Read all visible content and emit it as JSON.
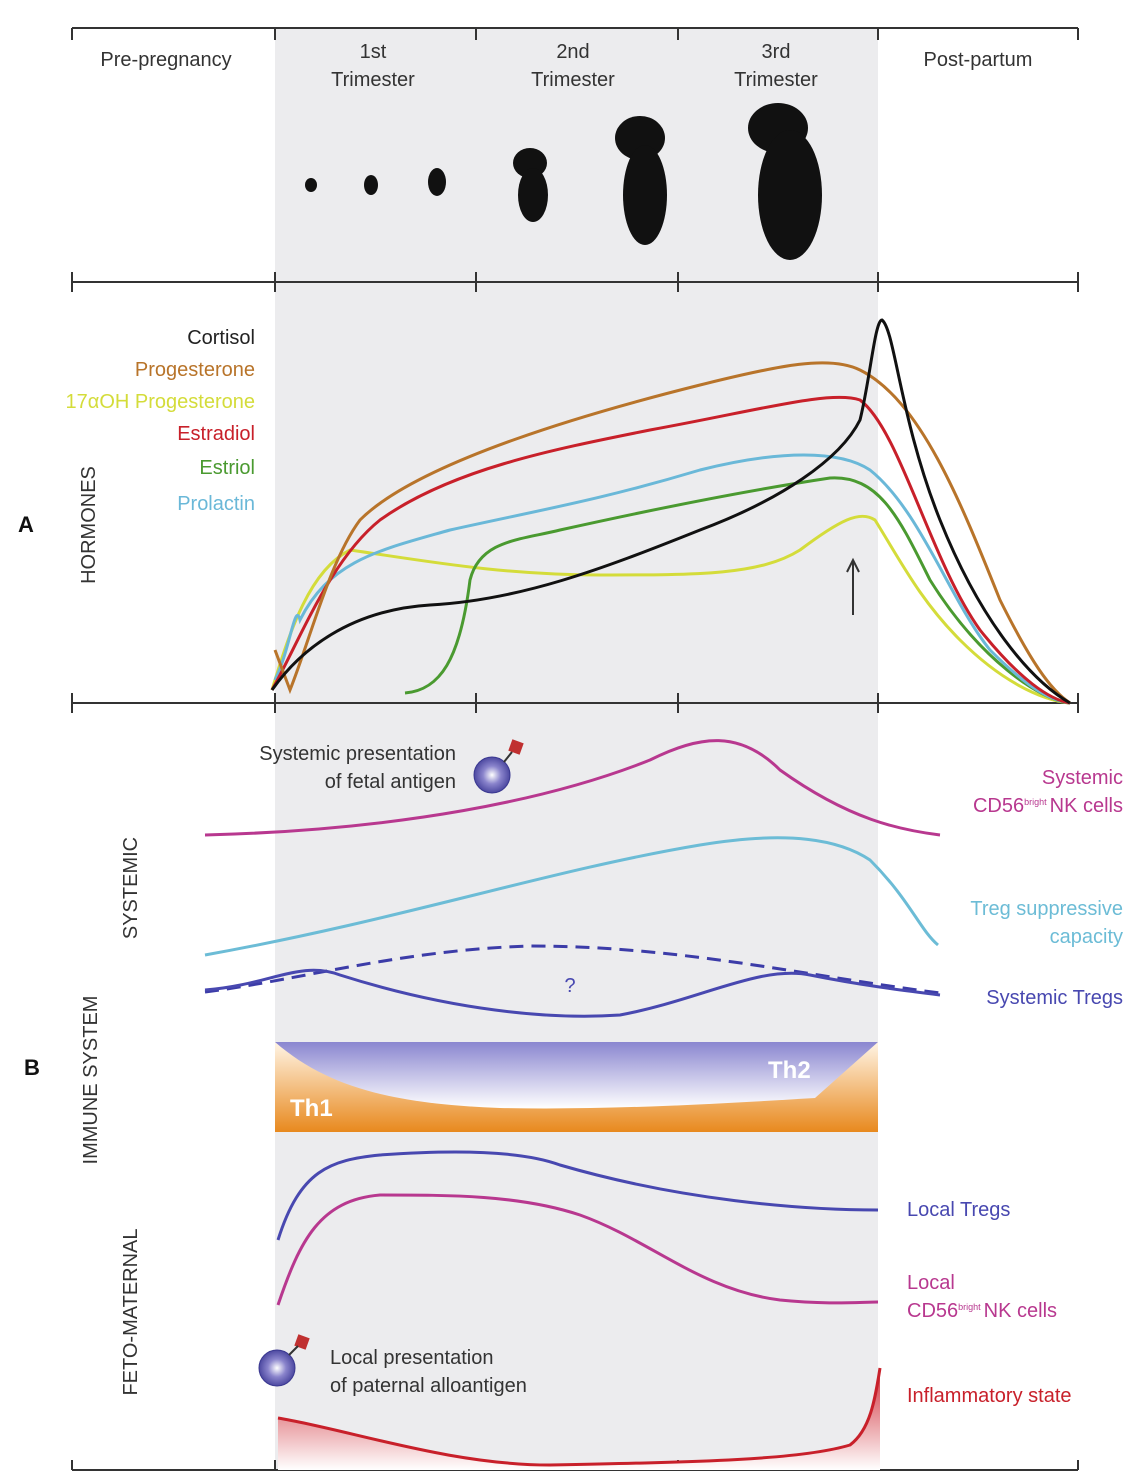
{
  "header": {
    "periods": [
      {
        "lines": [
          "Pre-pregnancy"
        ]
      },
      {
        "lines": [
          "1st",
          "Trimester"
        ]
      },
      {
        "lines": [
          "2nd",
          "Trimester"
        ]
      },
      {
        "lines": [
          "3rd",
          "Trimester"
        ]
      },
      {
        "lines": [
          "Post-partum"
        ]
      }
    ]
  },
  "panel_a": {
    "label": "A",
    "axis_label": "HORMONES",
    "hormones": [
      "Cortisol",
      "Progesterone",
      "17αOH Progesterone",
      "Estradiol",
      "Estriol",
      "Prolactin"
    ]
  },
  "panel_b": {
    "label": "B",
    "axis_label": "IMMUNE SYSTEM",
    "systemic_label": "SYSTEMIC",
    "feto_maternal_label": "FETO-MATERNAL",
    "systemic_presentation": [
      "Systemic presentation",
      "of fetal antigen"
    ],
    "systemic_nk": {
      "line1": "Systemic",
      "prefix": "CD56",
      "superscript": "bright",
      "suffix": "NK cells"
    },
    "treg_capacity": [
      "Treg suppressive",
      "capacity"
    ],
    "systemic_tregs": "Systemic Tregs",
    "question": "?",
    "th1": "Th1",
    "th2": "Th2",
    "local_tregs": "Local Tregs",
    "local_nk": {
      "line1": "Local",
      "prefix": "CD56",
      "superscript": "bright",
      "suffix": "NK cells"
    },
    "local_presentation": [
      "Local presentation",
      "of paternal alloantigen"
    ],
    "inflammatory": "Inflammatory state"
  }
}
